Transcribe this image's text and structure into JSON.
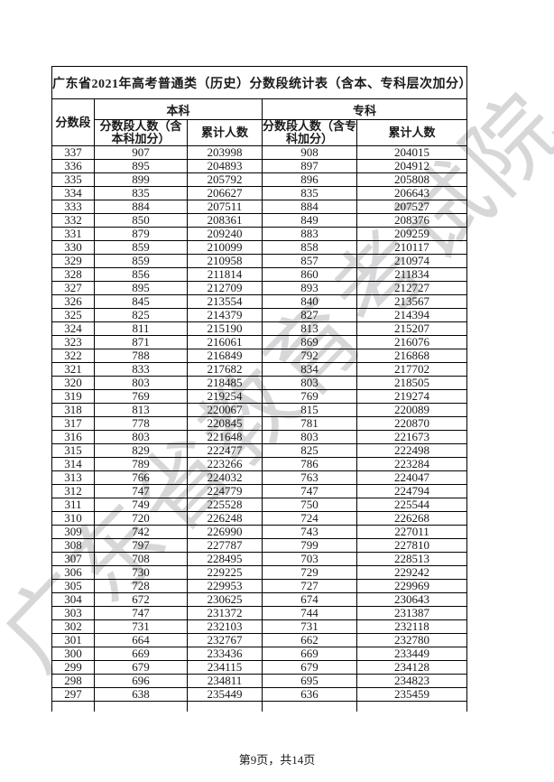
{
  "page": {
    "watermark": "广东省教育考试院",
    "footer": "第9页，共14页",
    "colors": {
      "watermark_gray": "#d7d7d9",
      "border": "#000000",
      "text": "#1a1a1a",
      "background": "#ffffff"
    }
  },
  "table": {
    "title": "广东省2021年高考普通类（历史）分数段统计表（含本、专科层次加分）",
    "header": {
      "score_segment": "分数段",
      "group_undergraduate": "本科",
      "group_college": "专科",
      "undergrad_count_line1": "分数段人数（含",
      "undergrad_count_line2": "本科加分）",
      "cumulative": "累计人数",
      "college_count_line1": "分数段人数（含专",
      "college_count_line2": "科加分）"
    },
    "rows": [
      [
        "337",
        "907",
        "203998",
        "908",
        "204015"
      ],
      [
        "336",
        "895",
        "204893",
        "897",
        "204912"
      ],
      [
        "335",
        "899",
        "205792",
        "896",
        "205808"
      ],
      [
        "334",
        "835",
        "206627",
        "835",
        "206643"
      ],
      [
        "333",
        "884",
        "207511",
        "884",
        "207527"
      ],
      [
        "332",
        "850",
        "208361",
        "849",
        "208376"
      ],
      [
        "331",
        "879",
        "209240",
        "883",
        "209259"
      ],
      [
        "330",
        "859",
        "210099",
        "858",
        "210117"
      ],
      [
        "329",
        "859",
        "210958",
        "857",
        "210974"
      ],
      [
        "328",
        "856",
        "211814",
        "860",
        "211834"
      ],
      [
        "327",
        "895",
        "212709",
        "893",
        "212727"
      ],
      [
        "326",
        "845",
        "213554",
        "840",
        "213567"
      ],
      [
        "325",
        "825",
        "214379",
        "827",
        "214394"
      ],
      [
        "324",
        "811",
        "215190",
        "813",
        "215207"
      ],
      [
        "323",
        "871",
        "216061",
        "869",
        "216076"
      ],
      [
        "322",
        "788",
        "216849",
        "792",
        "216868"
      ],
      [
        "321",
        "833",
        "217682",
        "834",
        "217702"
      ],
      [
        "320",
        "803",
        "218485",
        "803",
        "218505"
      ],
      [
        "319",
        "769",
        "219254",
        "769",
        "219274"
      ],
      [
        "318",
        "813",
        "220067",
        "815",
        "220089"
      ],
      [
        "317",
        "778",
        "220845",
        "781",
        "220870"
      ],
      [
        "316",
        "803",
        "221648",
        "803",
        "221673"
      ],
      [
        "315",
        "829",
        "222477",
        "825",
        "222498"
      ],
      [
        "314",
        "789",
        "223266",
        "786",
        "223284"
      ],
      [
        "313",
        "766",
        "224032",
        "763",
        "224047"
      ],
      [
        "312",
        "747",
        "224779",
        "747",
        "224794"
      ],
      [
        "311",
        "749",
        "225528",
        "750",
        "225544"
      ],
      [
        "310",
        "720",
        "226248",
        "724",
        "226268"
      ],
      [
        "309",
        "742",
        "226990",
        "743",
        "227011"
      ],
      [
        "308",
        "797",
        "227787",
        "799",
        "227810"
      ],
      [
        "307",
        "708",
        "228495",
        "703",
        "228513"
      ],
      [
        "306",
        "730",
        "229225",
        "729",
        "229242"
      ],
      [
        "305",
        "728",
        "229953",
        "727",
        "229969"
      ],
      [
        "304",
        "672",
        "230625",
        "674",
        "230643"
      ],
      [
        "303",
        "747",
        "231372",
        "744",
        "231387"
      ],
      [
        "302",
        "731",
        "232103",
        "731",
        "232118"
      ],
      [
        "301",
        "664",
        "232767",
        "662",
        "232780"
      ],
      [
        "300",
        "669",
        "233436",
        "669",
        "233449"
      ],
      [
        "299",
        "679",
        "234115",
        "679",
        "234128"
      ],
      [
        "298",
        "696",
        "234811",
        "695",
        "234823"
      ],
      [
        "297",
        "638",
        "235449",
        "636",
        "235459"
      ]
    ]
  }
}
